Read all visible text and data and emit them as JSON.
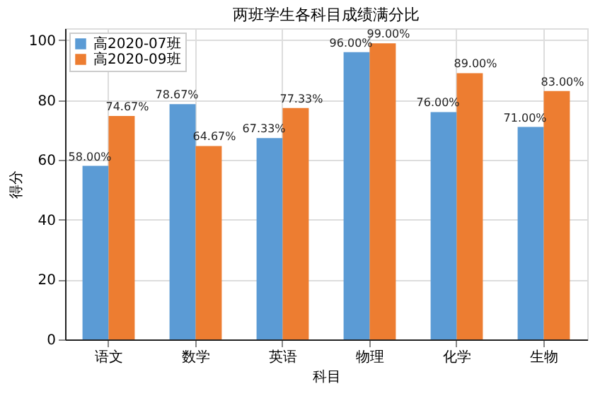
{
  "chart_data": {
    "type": "bar",
    "title": "两班学生各科目成绩满分比",
    "xlabel": "科目",
    "ylabel": "得分",
    "categories": [
      "语文",
      "数学",
      "英语",
      "物理",
      "化学",
      "生物"
    ],
    "series": [
      {
        "name": "高2020-07班",
        "color": "#5b9bd5",
        "values": [
          58.0,
          78.67,
          67.33,
          96.0,
          76.0,
          71.0
        ],
        "value_labels": [
          "58.00%",
          "78.67%",
          "67.33%",
          "96.00%",
          "76.00%",
          "71.00%"
        ]
      },
      {
        "name": "高2020-09班",
        "color": "#ed7d31",
        "values": [
          74.67,
          64.67,
          77.33,
          99.0,
          89.0,
          83.0
        ],
        "value_labels": [
          "74.67%",
          "64.67%",
          "77.33%",
          "99.00%",
          "89.00%",
          "83.00%"
        ]
      }
    ],
    "ylim": [
      0,
      104
    ],
    "yticks": [
      0,
      20,
      40,
      60,
      80,
      100
    ],
    "grid": true,
    "legend": "top left"
  }
}
